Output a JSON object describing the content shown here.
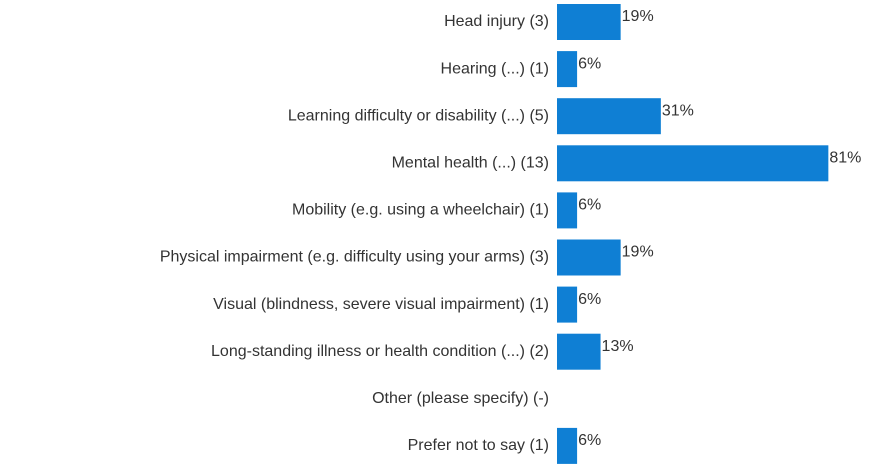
{
  "chart_data": {
    "type": "bar",
    "orientation": "horizontal",
    "color": "#0f7fd4",
    "categories": [
      "Head injury (3)",
      "Hearing (...) (1)",
      "Learning difficulty or disability (...) (5)",
      "Mental health (...) (13)",
      "Mobility (e.g. using a wheelchair) (1)",
      "Physical impairment (e.g. difficulty using your arms) (3)",
      "Visual (blindness, severe visual impairment) (1)",
      "Long-standing illness or health condition (...) (2)",
      "Other (please specify) (-)",
      "Prefer not to say (1)"
    ],
    "values": [
      19,
      6,
      31,
      81,
      6,
      19,
      6,
      13,
      null,
      6
    ],
    "value_labels": [
      "19%",
      "6%",
      "31%",
      "81%",
      "6%",
      "19%",
      "6%",
      "13%",
      null,
      "6%"
    ]
  }
}
